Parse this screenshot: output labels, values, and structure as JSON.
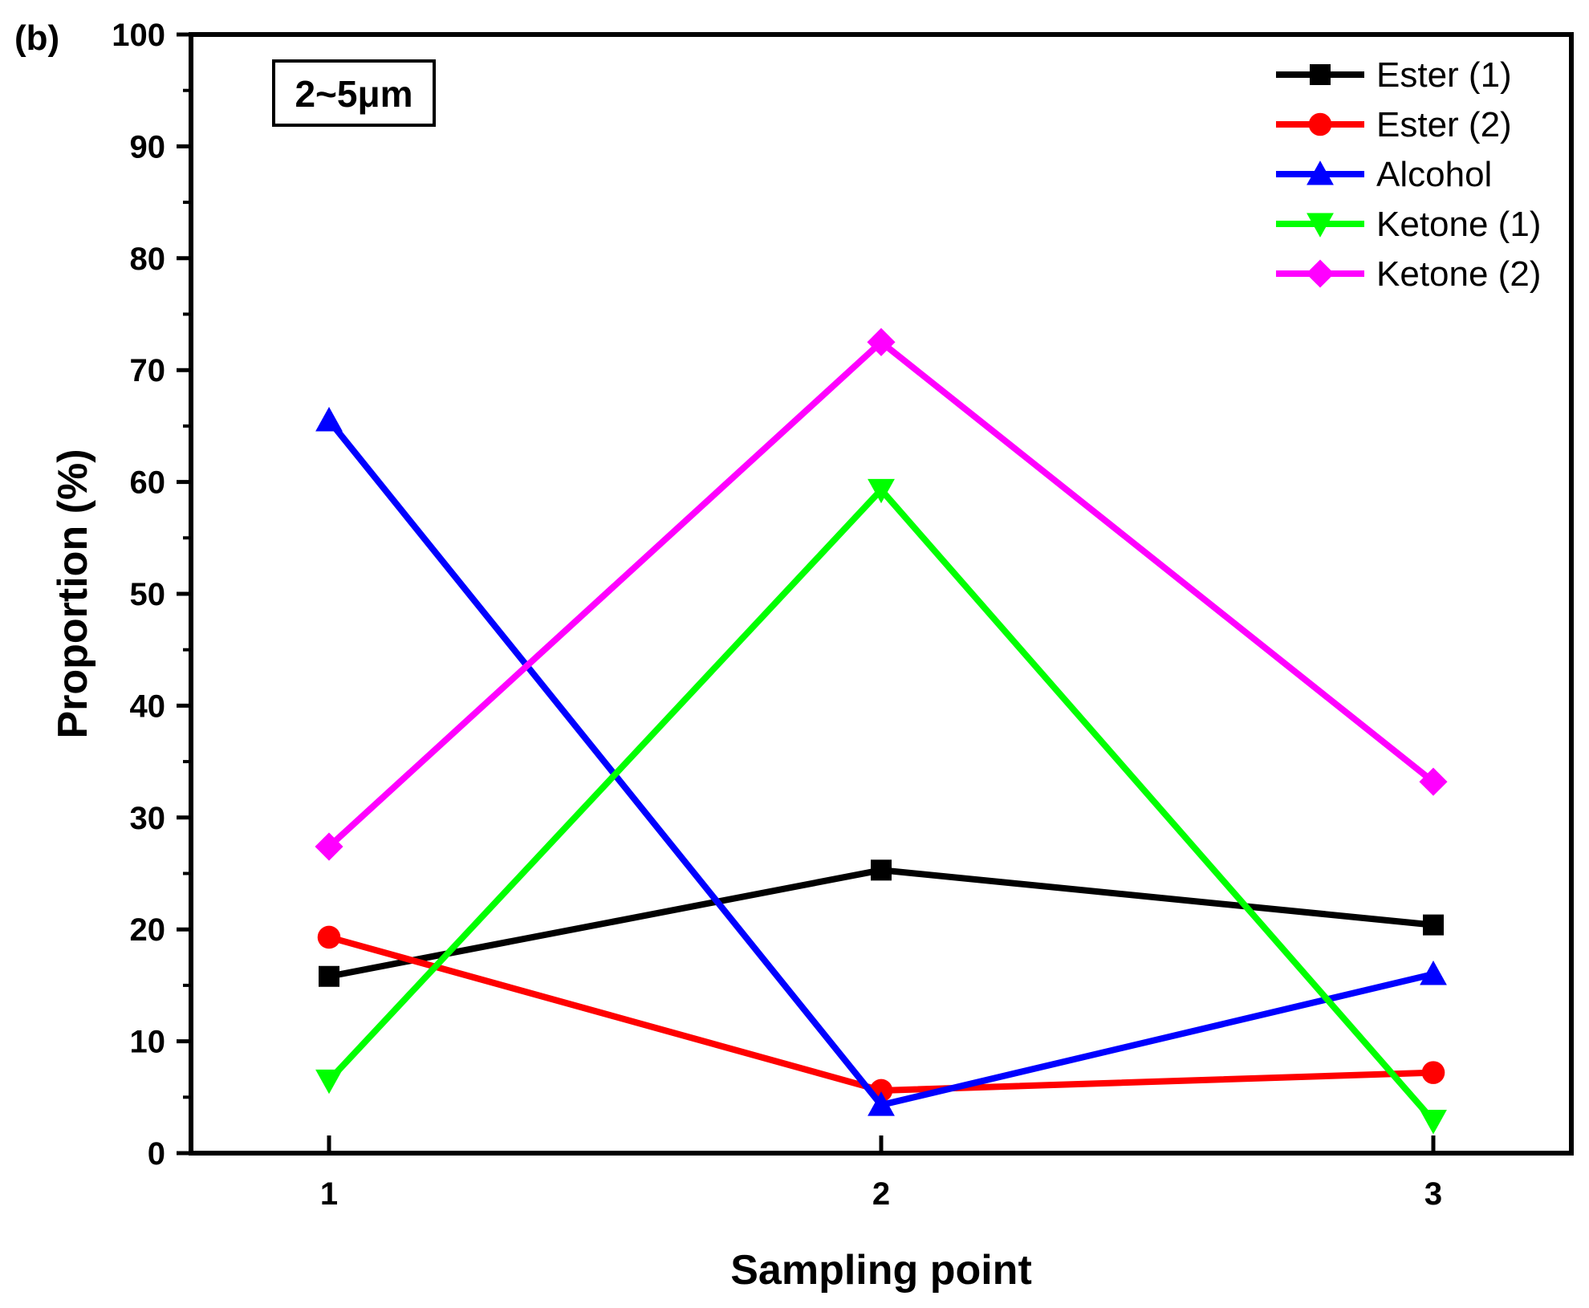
{
  "chart_data": {
    "type": "line",
    "panel_label": "(b)",
    "annotation": "2~5μm",
    "xlabel": "Sampling point",
    "ylabel": "Proportion (%)",
    "x": [
      1,
      2,
      3
    ],
    "x_tick_labels": [
      "1",
      "2",
      "3"
    ],
    "xlim": [
      0.75,
      3.25
    ],
    "ylim": [
      0,
      100
    ],
    "y_ticks": [
      0,
      10,
      20,
      30,
      40,
      50,
      60,
      70,
      80,
      90,
      100
    ],
    "legend_position": "top-right",
    "series": [
      {
        "name": "Ester (1)",
        "color": "#000000",
        "marker": "square",
        "values": [
          15.8,
          25.3,
          20.4
        ]
      },
      {
        "name": "Ester (2)",
        "color": "#ff0000",
        "marker": "circle",
        "values": [
          19.3,
          5.6,
          7.2
        ]
      },
      {
        "name": "Alcohol",
        "color": "#0000ff",
        "marker": "triangle-up",
        "values": [
          65.5,
          4.3,
          16.0
        ]
      },
      {
        "name": "Ketone (1)",
        "color": "#00ff00",
        "marker": "triangle-down",
        "values": [
          6.5,
          59.3,
          2.9
        ]
      },
      {
        "name": "Ketone (2)",
        "color": "#ff00ff",
        "marker": "diamond",
        "values": [
          27.4,
          72.5,
          33.2
        ]
      }
    ]
  }
}
